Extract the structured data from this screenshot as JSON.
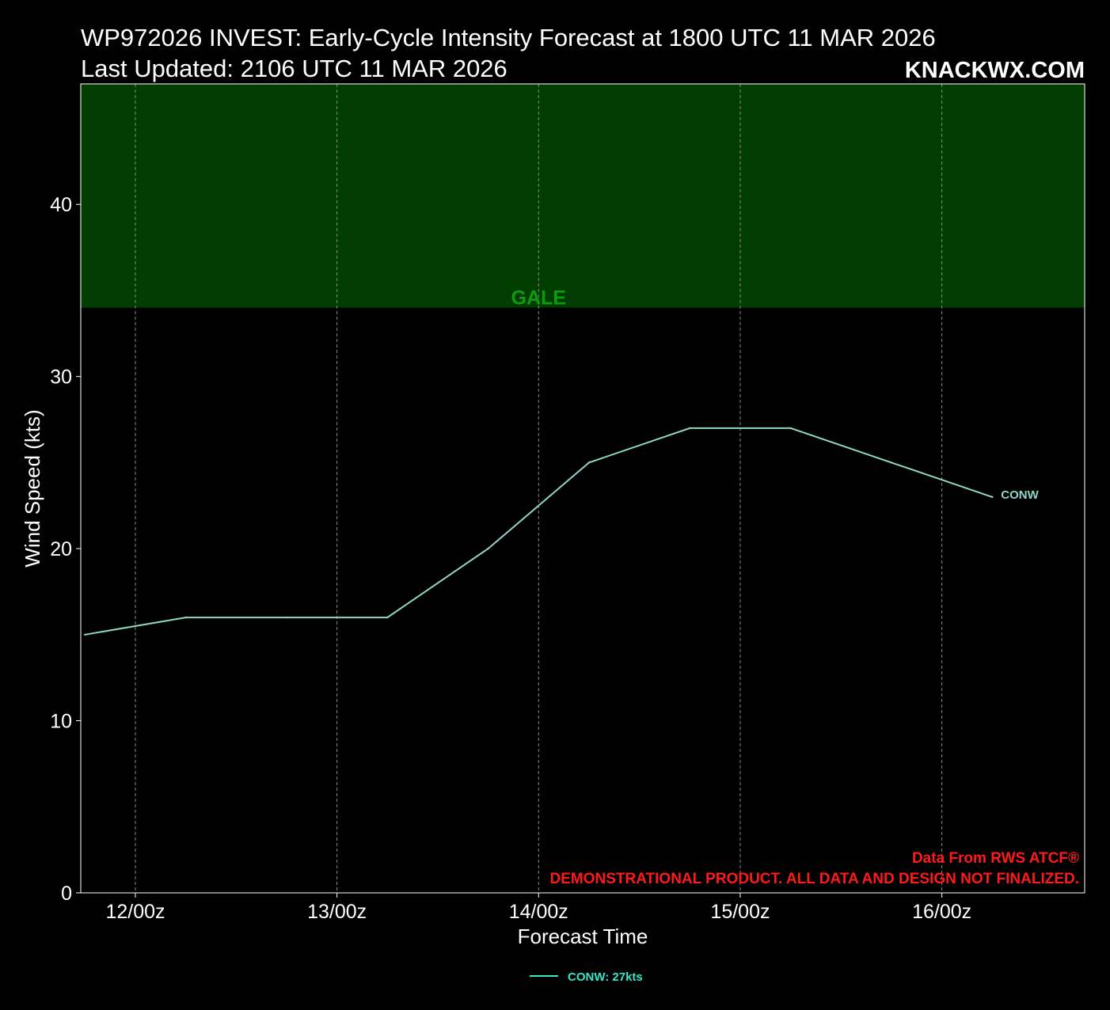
{
  "header": {
    "title_line1": "WP972026 INVEST: Early-Cycle Intensity Forecast at 1800 UTC 11 MAR 2026",
    "title_line2": "Last Updated: 2106 UTC 11 MAR 2026",
    "brand": "KNACKWX.COM"
  },
  "footer_notes": {
    "credit_line1": "Data From RWS ATCF®",
    "credit_line2": "DEMONSTRATIONAL PRODUCT. ALL DATA AND DESIGN NOT FINALIZED."
  },
  "colors": {
    "background": "#000000",
    "gale_band": "#013c01",
    "gale_label": "#0f9b0f",
    "series_line": "#8fd5c8",
    "legend_line": "#35e6c9",
    "credit": "#ff1a1a",
    "grid": "#888888"
  },
  "chart_data": {
    "type": "line",
    "xlabel": "Forecast Time",
    "ylabel": "Wind Speed (kts)",
    "x_unit": "hours after 1800 UTC 11 MAR 2026",
    "xlim": [
      -0.5,
      119.0
    ],
    "ylim": [
      0,
      47
    ],
    "x_ticks": [
      {
        "label": "12/00z",
        "value": 6
      },
      {
        "label": "13/00z",
        "value": 30
      },
      {
        "label": "14/00z",
        "value": 54
      },
      {
        "label": "15/00z",
        "value": 78
      },
      {
        "label": "16/00z",
        "value": 102
      }
    ],
    "y_ticks": [
      0,
      10,
      20,
      30,
      40
    ],
    "grid": {
      "x": true,
      "y": false,
      "style": "dashed"
    },
    "bands": [
      {
        "label": "GALE",
        "from": 34,
        "to": 47
      }
    ],
    "series": [
      {
        "name": "CONW",
        "end_label": "CONW",
        "x": [
          0,
          12,
          24,
          36,
          48,
          60,
          72,
          84,
          96,
          108
        ],
        "y": [
          15,
          16,
          16,
          16,
          20,
          25,
          27,
          27,
          25,
          23
        ]
      }
    ],
    "legend": {
      "position": "bottom-center",
      "entries": [
        "CONW: 27kts"
      ]
    }
  }
}
